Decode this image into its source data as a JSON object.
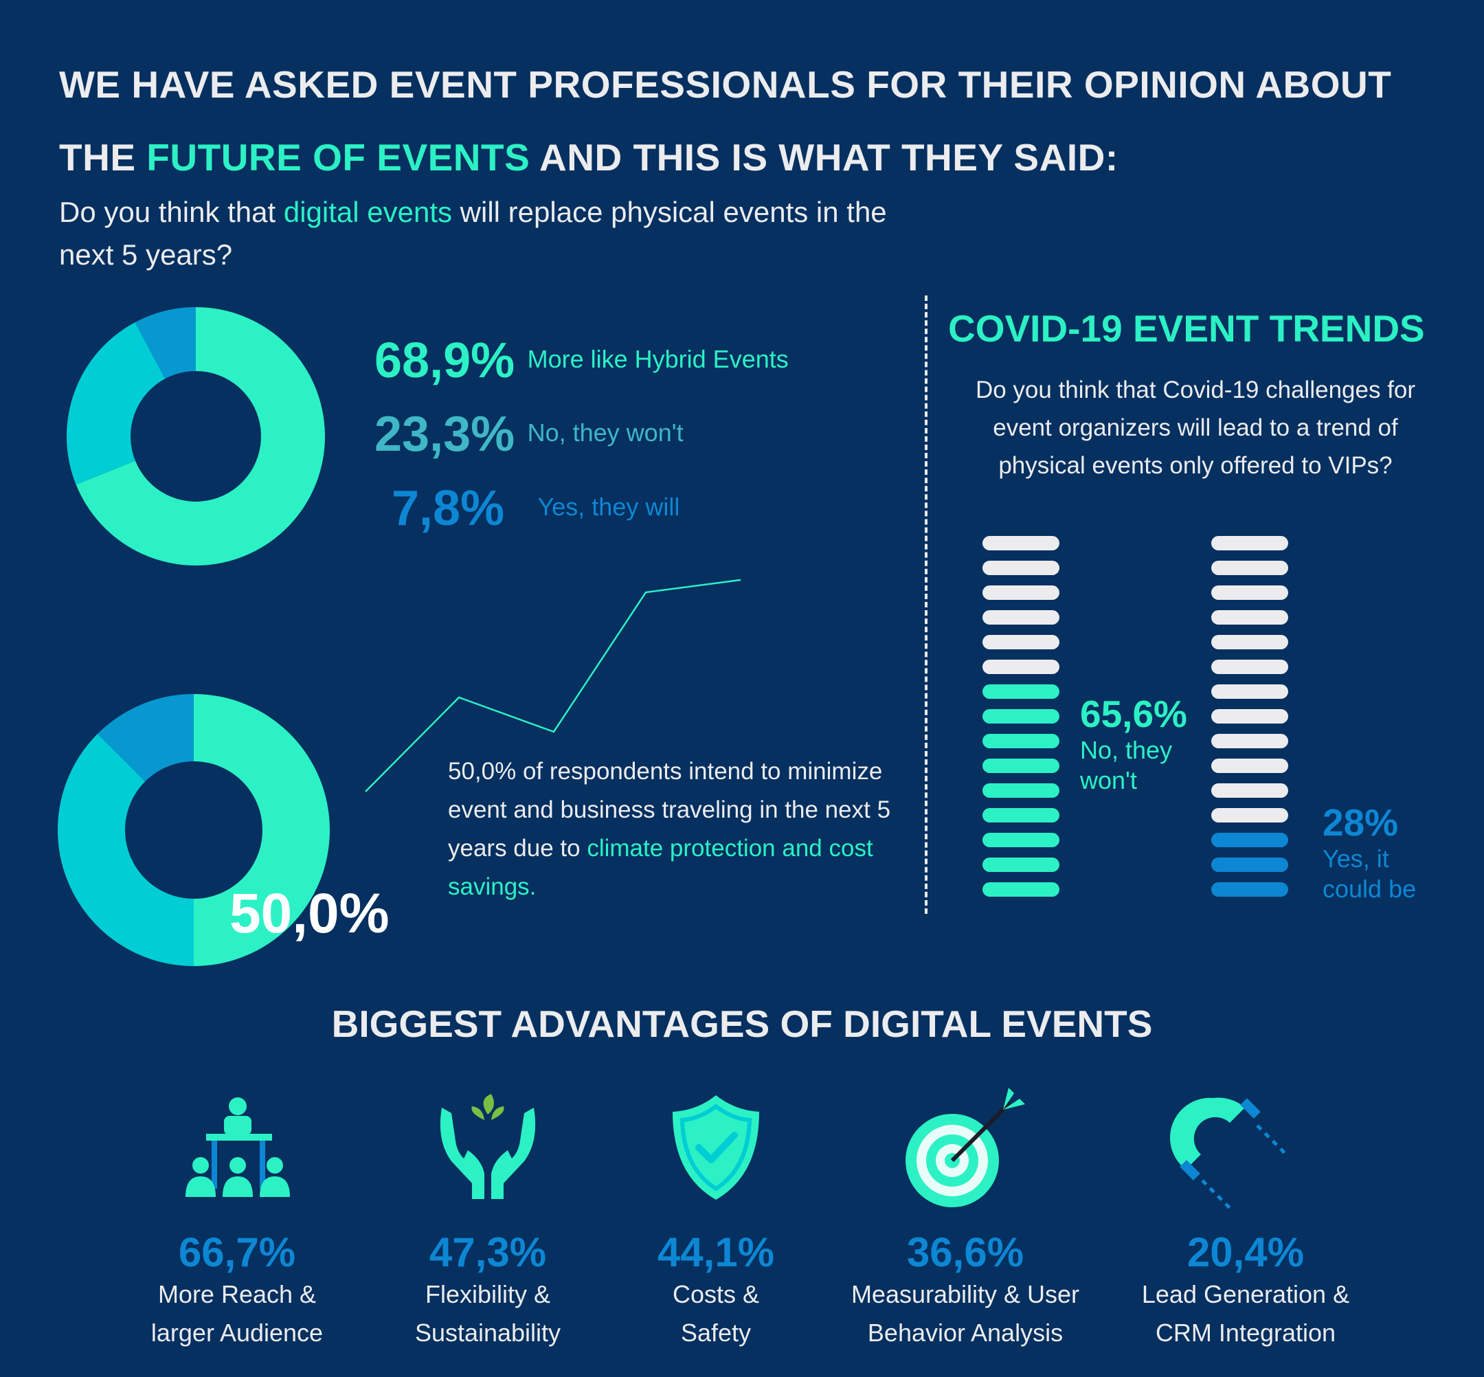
{
  "headline": {
    "part1": "WE HAVE ASKED EVENT PROFESSIONALS FOR THEIR OPINION ABOUT THE ",
    "highlight": "FUTURE OF EVENTS",
    "part2": " AND THIS IS WHAT THEY SAID:"
  },
  "question1": {
    "part1": "Do you think that ",
    "highlight": "digital events",
    "part2": " will replace physical events in the next 5 years?"
  },
  "donut1": {
    "slices": [
      {
        "value": 68.9,
        "pct": "68,9%",
        "label": "More like Hybrid Events",
        "color": "#2cf1c4"
      },
      {
        "value": 23.3,
        "pct": "23,3%",
        "label": "No, they won't",
        "color": "#00cdd4"
      },
      {
        "value": 7.8,
        "pct": "7,8%",
        "label": "Yes, they will",
        "color": "#0798d0"
      }
    ]
  },
  "donut2": {
    "big_label": "50,0%",
    "slices": [
      {
        "value": 50.0,
        "color": "#2cf1c4"
      },
      {
        "value": 37.5,
        "color": "#00cdd4"
      },
      {
        "value": 12.5,
        "color": "#0798d0"
      }
    ]
  },
  "travel": {
    "text": "50,0% of respondents intend to minimize event and business traveling in the next 5 years due to ",
    "highlight": "climate protection and cost savings."
  },
  "covid": {
    "title": "COVID-19 EVENT TRENDS",
    "question": "Do you think that Covid-19 challenges for event organizers will lead to a trend of physical events only offered to VIPs?",
    "bars": [
      {
        "pct": "65,6%",
        "label_line1": "No, they",
        "label_line2": "won't",
        "total_segments": 15,
        "filled_segments": 9,
        "fill_color": "#2cf1c4",
        "empty_color": "#ececee"
      },
      {
        "pct": "28%",
        "label_line1": "Yes, it",
        "label_line2": "could be",
        "total_segments": 15,
        "filled_segments": 3,
        "fill_color": "#0d87d3",
        "empty_color": "#ececee"
      }
    ]
  },
  "advantages": {
    "title": "BIGGEST ADVANTAGES OF DIGITAL EVENTS",
    "items": [
      {
        "pct": "66,7%",
        "line1": "More Reach &",
        "line2": "larger Audience",
        "icon": "audience-icon"
      },
      {
        "pct": "47,3%",
        "line1": "Flexibility &",
        "line2": "Sustainability",
        "icon": "plant-hands-icon"
      },
      {
        "pct": "44,1%",
        "line1": "Costs &",
        "line2": "Safety",
        "icon": "shield-check-icon"
      },
      {
        "pct": "36,6%",
        "line1": "Measurability & User",
        "line2": "Behavior Analysis",
        "icon": "target-icon"
      },
      {
        "pct": "20,4%",
        "line1": "Lead Generation &",
        "line2": "CRM Integration",
        "icon": "magnet-icon"
      }
    ]
  },
  "colors": {
    "background": "#053060",
    "mint": "#2cf1c4",
    "teal": "#00cdd4",
    "blue": "#0d87d3",
    "light": "#ececee"
  }
}
